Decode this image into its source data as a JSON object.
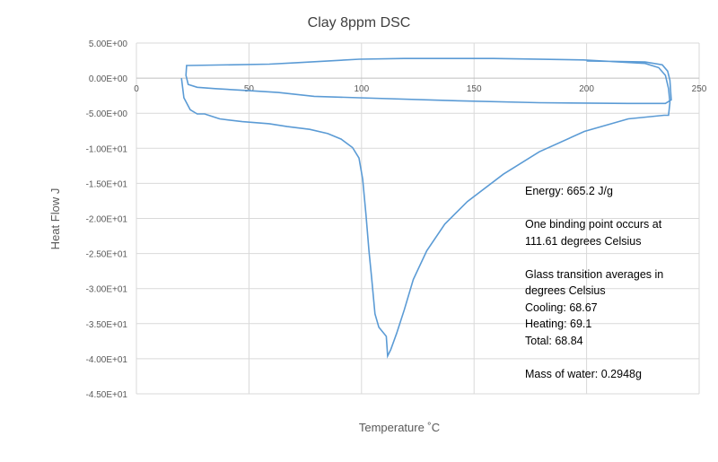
{
  "chart_data": {
    "type": "scatter",
    "title": "Clay 8ppm DSC",
    "xlabel": "Temperature ˚C",
    "ylabel": "Heat Flow J",
    "xlim": [
      0,
      250
    ],
    "ylim": [
      -45,
      5
    ],
    "x_ticks": [
      "0",
      "50",
      "100",
      "150",
      "200",
      "250"
    ],
    "y_ticks": [
      "5.00E+00",
      "0.00E+00",
      "-5.00E+00",
      "-1.00E+01",
      "-1.50E+01",
      "-2.00E+01",
      "-2.50E+01",
      "-3.00E+01",
      "-3.50E+01",
      "-4.00E+01",
      "-4.50E+01"
    ],
    "grid": true,
    "line_color": "#5b9bd5",
    "series": [
      {
        "points": [
          [
            20,
            0
          ],
          [
            21.1,
            -2.8
          ],
          [
            23.9,
            -4.5
          ],
          [
            27,
            -5.1
          ],
          [
            30.3,
            -5.1
          ],
          [
            33,
            -5.4
          ],
          [
            37,
            -5.8
          ],
          [
            47,
            -6.2
          ],
          [
            59,
            -6.5
          ],
          [
            67,
            -6.9
          ],
          [
            77,
            -7.3
          ],
          [
            85,
            -7.9
          ],
          [
            91,
            -8.7
          ],
          [
            96,
            -9.9
          ],
          [
            98.9,
            -11.4
          ],
          [
            100.5,
            -14.4
          ],
          [
            102,
            -19.5
          ],
          [
            103.3,
            -24.6
          ],
          [
            104.5,
            -28.5
          ],
          [
            106,
            -33.6
          ],
          [
            107.7,
            -35.5
          ],
          [
            111,
            -36.8
          ],
          [
            111.6,
            -39.6
          ],
          [
            113,
            -38.7
          ],
          [
            115.6,
            -36.4
          ],
          [
            119,
            -33
          ],
          [
            123,
            -28.7
          ],
          [
            129,
            -24.6
          ],
          [
            137,
            -20.8
          ],
          [
            147,
            -17.6
          ],
          [
            163,
            -13.7
          ],
          [
            179,
            -10.5
          ],
          [
            199,
            -7.6
          ],
          [
            218.5,
            -5.8
          ],
          [
            234.4,
            -5.3
          ],
          [
            236.4,
            -5.3
          ],
          [
            237,
            -3.5
          ],
          [
            236.4,
            -1.5
          ],
          [
            235,
            0.4
          ],
          [
            232,
            1.5
          ],
          [
            226,
            2.1
          ],
          [
            198.6,
            2.6
          ],
          [
            158.7,
            2.8
          ],
          [
            118.8,
            2.8
          ],
          [
            99,
            2.7
          ],
          [
            71,
            2.2
          ],
          [
            59,
            2.0
          ],
          [
            23,
            1.8
          ],
          [
            22.3,
            1.8
          ],
          [
            22,
            0.4
          ],
          [
            23,
            -0.9
          ],
          [
            27,
            -1.3
          ],
          [
            35,
            -1.5
          ],
          [
            51,
            -1.8
          ],
          [
            63,
            -2.05
          ],
          [
            79,
            -2.6
          ],
          [
            99,
            -2.8
          ],
          [
            139,
            -3.2
          ],
          [
            179,
            -3.5
          ],
          [
            218.5,
            -3.6
          ],
          [
            235,
            -3.6
          ],
          [
            237.6,
            -3.1
          ],
          [
            237,
            -0.3
          ],
          [
            236,
            1.0
          ],
          [
            233.6,
            1.9
          ],
          [
            226,
            2.3
          ],
          [
            200,
            2.45
          ]
        ]
      }
    ],
    "annotations": [
      "Energy: 665.2 J/g",
      "",
      "One binding  point occurs at",
      "111.61 degrees  Celsius",
      "",
      "Glass transition averages in",
      "degrees Celsius",
      "Cooling: 68.67",
      "Heating: 69.1",
      "Total: 68.84",
      "",
      "Mass of water: 0.2948g"
    ]
  }
}
